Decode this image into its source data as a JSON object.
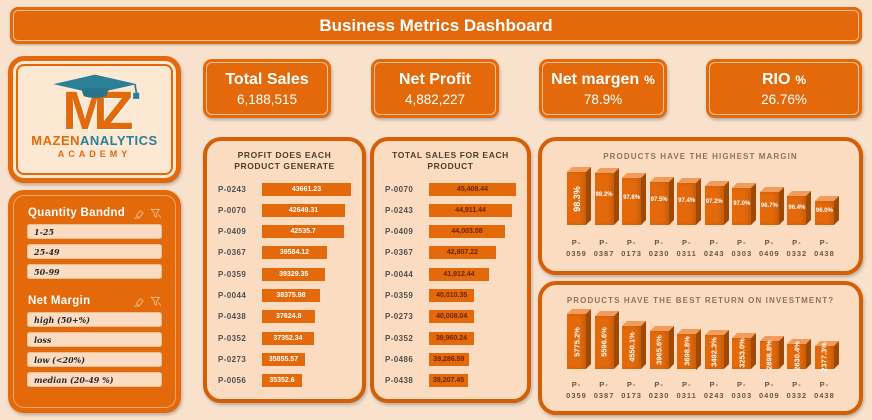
{
  "title": "Business Metrics Dashboard",
  "logo": {
    "initials": "MZ",
    "brand_primary": "MAZEN",
    "brand_secondary": "ANALYTICS",
    "tagline": "ACADEMY"
  },
  "kpis": [
    {
      "label": "Total Sales",
      "suffix": "",
      "value": "6,188,515"
    },
    {
      "label": "Net Profit",
      "suffix": "",
      "value": "4,882,227"
    },
    {
      "label": "Net margen",
      "suffix": "%",
      "value": "78.9%"
    },
    {
      "label": "RIO",
      "suffix": "%",
      "value": "26.76%"
    }
  ],
  "slicers": [
    {
      "title": "Quantity Bandnd",
      "items": [
        "1-25",
        "25-49",
        "50-99"
      ]
    },
    {
      "title": "Net Margin",
      "items": [
        "high (50+%)",
        "loss",
        "low (<20%)",
        "median (20-49 %)"
      ]
    }
  ],
  "colors": {
    "primary_orange": "#E3690B",
    "panel_border": "#D55F06",
    "panel_bg": "#FBDCC1",
    "page_bg": "#F9E2CD",
    "logo_teal": "#2B7F96",
    "sales_value_text": "#6D2400",
    "profit_value_text": "#FFFFFF"
  },
  "chart_data": [
    {
      "type": "bar",
      "title": "PRODUCTS HAVE THE HIGHEST MARGIN",
      "categories": [
        "P-0359",
        "P-0387",
        "P-0173",
        "P-0230",
        "P-0311",
        "P-0243",
        "P-0303",
        "P-0409",
        "P-0332",
        "P-0438"
      ],
      "values": [
        98.3,
        98.2,
        97.8,
        97.5,
        97.4,
        97.2,
        97.0,
        96.7,
        96.4,
        96.0
      ],
      "labels": [
        "98.3%",
        "98.2%",
        "97.8%",
        "97.5%",
        "97.4%",
        "97.2%",
        "97.0%",
        "96.7%",
        "96.4%",
        "96.0%"
      ],
      "label_style": "first-vertical",
      "min_bar_pct": 45,
      "ylim": [
        95,
        99
      ],
      "grid": false,
      "legend": "none",
      "bar_color": "#E3690B"
    },
    {
      "type": "bar",
      "title": "PRODUCTS HAVE THE BEST RETURN ON INVESTMENT?",
      "categories": [
        "P-0359",
        "P-0387",
        "P-0173",
        "P-0230",
        "P-0311",
        "P-0243",
        "P-0303",
        "P-0409",
        "P-0332",
        "P-0438"
      ],
      "values": [
        5775.2,
        5596.6,
        4550.1,
        3965.6,
        3698.8,
        3492.3,
        3253.0,
        2898.8,
        2630.4,
        2377.3
      ],
      "labels": [
        "5775.2%",
        "5596.6%",
        "4550.1%",
        "3965.6%",
        "3698.8%",
        "3492.3%",
        "3253.0%",
        "2898.8%",
        "2630.4%",
        "2377.3%"
      ],
      "label_style": "all-vertical",
      "min_bar_pct": 42,
      "ylim": [
        0,
        6000
      ],
      "grid": false,
      "legend": "none",
      "bar_color": "#E3690B"
    },
    {
      "type": "bar",
      "orientation": "horizontal",
      "title": "PROFIT DOES EACH PRODUCT GENERATE",
      "title_lines": [
        "PROFIT DOES EACH",
        "PRODUCT GENERATE"
      ],
      "categories": [
        "P-0243",
        "P-0070",
        "P-0409",
        "P-0367",
        "P-0359",
        "P-0044",
        "P-0438",
        "P-0352",
        "P-0273",
        "P-0056"
      ],
      "values": [
        43661.23,
        42649.31,
        42535.7,
        39584.12,
        39329.35,
        38375.98,
        37624.8,
        37352.34,
        35855.57,
        35352.6
      ],
      "value_labels": [
        "43661.23",
        "42649.31",
        "42535.7",
        "39584.12",
        "39329.35",
        "38375.98",
        "37624.8",
        "37352.34",
        "35855.57",
        "35352.6"
      ],
      "bar_color": "#E3690B"
    },
    {
      "type": "bar",
      "orientation": "horizontal",
      "title": "TOTAL SALES FOR EACH PRODUCT",
      "title_lines": [
        "TOTAL SALES FOR EACH",
        "PRODUCT"
      ],
      "categories": [
        "P-0070",
        "P-0243",
        "P-0409",
        "P-0367",
        "P-0044",
        "P-0359",
        "P-0273",
        "P-0352",
        "P-0486",
        "P-0438"
      ],
      "values": [
        45408.44,
        44911.44,
        44003.08,
        42807.22,
        41912.44,
        40010.35,
        40008.04,
        39960.24,
        39286.59,
        39207.45
      ],
      "value_labels": [
        "45,408.44",
        "44,911.44",
        "44,003.08",
        "42,807.22",
        "41,912.44",
        "40,010.35",
        "40,008.04",
        "39,960.24",
        "39,286.59",
        "39,207.45"
      ],
      "bar_color": "#E3690B"
    }
  ]
}
